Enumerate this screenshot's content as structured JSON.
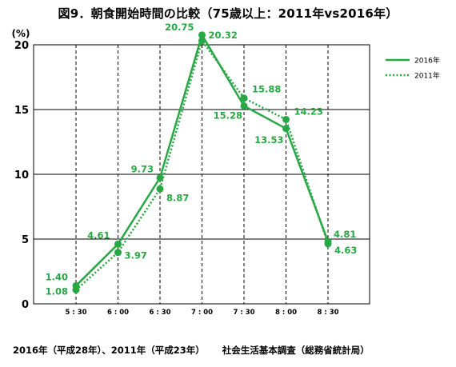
{
  "title": "図9．朝食開始時間の比較（75歳以上：2011年vs2016年）",
  "footer": {
    "note": "2016年（平成28年）、2011年（平成23年）",
    "source": "社会生活基本調査（総務省統計局）"
  },
  "colors": {
    "series": "#27a844",
    "grid": "#000000"
  },
  "chart_data": {
    "type": "line",
    "ylabel": "(%)",
    "ylim": [
      0,
      20
    ],
    "yticks": [
      "0",
      "5",
      "10",
      "15",
      "20"
    ],
    "categories": [
      "5 : 30",
      "6 : 00",
      "6 : 30",
      "7 : 00",
      "7 : 30",
      "8 : 00",
      "8 : 30"
    ],
    "legend_position": "top-right",
    "series": [
      {
        "name": "2016年",
        "style": "solid",
        "values": [
          1.4,
          4.61,
          9.73,
          20.75,
          15.28,
          13.53,
          4.81
        ],
        "labels": [
          "1.40",
          "4.61",
          "9.73",
          "20.75",
          "15.28",
          "13.53",
          "4.81"
        ]
      },
      {
        "name": "2011年",
        "style": "dotted",
        "values": [
          1.08,
          3.97,
          8.87,
          20.32,
          15.88,
          14.23,
          4.63
        ],
        "labels": [
          "1.08",
          "3.97",
          "8.87",
          "20.32",
          "15.88",
          "14.23",
          "4.63"
        ]
      }
    ]
  }
}
